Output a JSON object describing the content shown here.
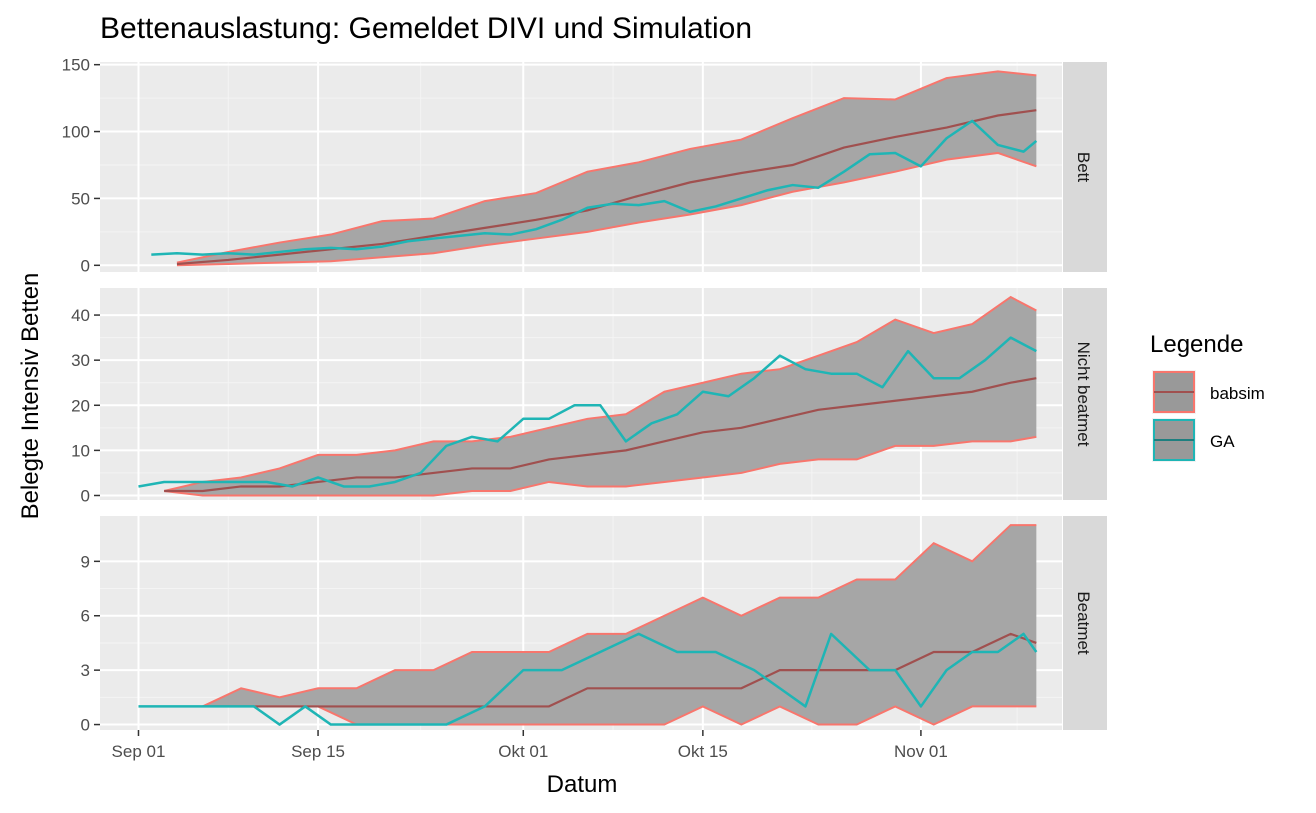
{
  "chart_data": {
    "type": "line",
    "title": "Bettenauslastung: Gemeldet DIVI und Simulation",
    "xlabel": "Datum",
    "ylabel": "Belegte Intensiv Betten",
    "x_range": [
      "2020-08-29",
      "2020-11-12"
    ],
    "x_ticks": [
      {
        "date": "2020-09-01",
        "label": "Sep 01"
      },
      {
        "date": "2020-09-15",
        "label": "Sep 15"
      },
      {
        "date": "2020-10-01",
        "label": "Okt 01"
      },
      {
        "date": "2020-10-15",
        "label": "Okt 15"
      },
      {
        "date": "2020-11-01",
        "label": "Nov 01"
      }
    ],
    "grid": true,
    "legend": {
      "title": "Legende",
      "placement": "right",
      "entries": [
        {
          "name": "babsim",
          "color": "#F8766D",
          "fill": "#999999",
          "line": "#A0504F"
        },
        {
          "name": "GA",
          "color": "#1FB5B5",
          "fill": "#999999",
          "line": "#1E7F7F"
        }
      ]
    },
    "colors": {
      "babsim_ribbon": "#F8766D",
      "babsim_median": "#A0504F",
      "ga": "#1FB5B5",
      "ribbon_fill": "#A6A6A6"
    },
    "facets": [
      {
        "strip": "Bett",
        "ylim": [
          -5,
          152
        ],
        "y_ticks": [
          0,
          50,
          100,
          150
        ],
        "babsim": {
          "x": [
            "2020-09-04",
            "2020-09-08",
            "2020-09-12",
            "2020-09-16",
            "2020-09-20",
            "2020-09-24",
            "2020-09-28",
            "2020-10-02",
            "2020-10-06",
            "2020-10-10",
            "2020-10-14",
            "2020-10-18",
            "2020-10-22",
            "2020-10-26",
            "2020-10-30",
            "2020-11-03",
            "2020-11-07",
            "2020-11-10"
          ],
          "lower": [
            0,
            1,
            2,
            3,
            6,
            9,
            15,
            20,
            25,
            32,
            38,
            45,
            55,
            62,
            70,
            79,
            84,
            74
          ],
          "median": [
            1,
            4,
            8,
            12,
            16,
            22,
            28,
            34,
            41,
            52,
            62,
            69,
            75,
            88,
            96,
            103,
            112,
            116
          ],
          "upper": [
            2,
            10,
            17,
            23,
            33,
            35,
            48,
            54,
            70,
            77,
            87,
            94,
            110,
            125,
            124,
            140,
            145,
            142
          ]
        },
        "ga": {
          "x": [
            "2020-09-02",
            "2020-09-04",
            "2020-09-06",
            "2020-09-08",
            "2020-09-10",
            "2020-09-12",
            "2020-09-14",
            "2020-09-16",
            "2020-09-18",
            "2020-09-20",
            "2020-09-22",
            "2020-09-24",
            "2020-09-26",
            "2020-09-28",
            "2020-09-30",
            "2020-10-02",
            "2020-10-04",
            "2020-10-06",
            "2020-10-08",
            "2020-10-10",
            "2020-10-12",
            "2020-10-14",
            "2020-10-16",
            "2020-10-18",
            "2020-10-20",
            "2020-10-22",
            "2020-10-24",
            "2020-10-26",
            "2020-10-28",
            "2020-10-30",
            "2020-11-01",
            "2020-11-03",
            "2020-11-05",
            "2020-11-07",
            "2020-11-09",
            "2020-11-10"
          ],
          "values": [
            8,
            9,
            8,
            9,
            8,
            10,
            12,
            13,
            12,
            14,
            18,
            20,
            22,
            24,
            23,
            27,
            34,
            43,
            46,
            45,
            48,
            40,
            44,
            50,
            56,
            60,
            58,
            70,
            83,
            84,
            74,
            95,
            108,
            90,
            85,
            93
          ]
        }
      },
      {
        "strip": "Nicht beatmet",
        "ylim": [
          -1,
          46
        ],
        "y_ticks": [
          0,
          10,
          20,
          30,
          40
        ],
        "babsim": {
          "x": [
            "2020-09-03",
            "2020-09-06",
            "2020-09-09",
            "2020-09-12",
            "2020-09-15",
            "2020-09-18",
            "2020-09-21",
            "2020-09-24",
            "2020-09-27",
            "2020-09-30",
            "2020-10-03",
            "2020-10-06",
            "2020-10-09",
            "2020-10-12",
            "2020-10-15",
            "2020-10-18",
            "2020-10-21",
            "2020-10-24",
            "2020-10-27",
            "2020-10-30",
            "2020-11-02",
            "2020-11-05",
            "2020-11-08",
            "2020-11-10"
          ],
          "lower": [
            1,
            0,
            0,
            0,
            0,
            0,
            0,
            0,
            1,
            1,
            3,
            2,
            2,
            3,
            4,
            5,
            7,
            8,
            8,
            11,
            11,
            12,
            12,
            13
          ],
          "median": [
            1,
            1,
            2,
            2,
            3,
            4,
            4,
            5,
            6,
            6,
            8,
            9,
            10,
            12,
            14,
            15,
            17,
            19,
            20,
            21,
            22,
            23,
            25,
            26
          ],
          "upper": [
            1,
            3,
            4,
            6,
            9,
            9,
            10,
            12,
            12,
            13,
            15,
            17,
            18,
            23,
            25,
            27,
            28,
            31,
            34,
            39,
            36,
            38,
            44,
            41
          ]
        },
        "ga": {
          "x": [
            "2020-09-01",
            "2020-09-03",
            "2020-09-05",
            "2020-09-07",
            "2020-09-09",
            "2020-09-11",
            "2020-09-13",
            "2020-09-15",
            "2020-09-17",
            "2020-09-19",
            "2020-09-21",
            "2020-09-23",
            "2020-09-25",
            "2020-09-27",
            "2020-09-29",
            "2020-10-01",
            "2020-10-03",
            "2020-10-05",
            "2020-10-07",
            "2020-10-09",
            "2020-10-11",
            "2020-10-13",
            "2020-10-15",
            "2020-10-17",
            "2020-10-19",
            "2020-10-21",
            "2020-10-23",
            "2020-10-25",
            "2020-10-27",
            "2020-10-29",
            "2020-10-31",
            "2020-11-02",
            "2020-11-04",
            "2020-11-06",
            "2020-11-08",
            "2020-11-10"
          ],
          "values": [
            2,
            3,
            3,
            3,
            3,
            3,
            2,
            4,
            2,
            2,
            3,
            5,
            11,
            13,
            12,
            17,
            17,
            20,
            20,
            12,
            16,
            18,
            23,
            22,
            26,
            31,
            28,
            27,
            27,
            24,
            32,
            26,
            26,
            30,
            35,
            32
          ]
        }
      },
      {
        "strip": "Beatmet",
        "ylim": [
          -0.3,
          11.5
        ],
        "y_ticks": [
          0,
          3,
          6,
          9
        ],
        "babsim": {
          "x": [
            "2020-09-06",
            "2020-09-09",
            "2020-09-12",
            "2020-09-15",
            "2020-09-18",
            "2020-09-21",
            "2020-09-24",
            "2020-09-27",
            "2020-09-30",
            "2020-10-03",
            "2020-10-06",
            "2020-10-09",
            "2020-10-12",
            "2020-10-15",
            "2020-10-18",
            "2020-10-21",
            "2020-10-24",
            "2020-10-27",
            "2020-10-30",
            "2020-11-02",
            "2020-11-05",
            "2020-11-08",
            "2020-11-10"
          ],
          "lower": [
            1,
            1,
            1,
            1,
            0,
            0,
            0,
            0,
            0,
            0,
            0,
            0,
            0,
            1,
            0,
            1,
            0,
            0,
            1,
            0,
            1,
            1,
            1
          ],
          "median": [
            1,
            1,
            1,
            1,
            1,
            1,
            1,
            1,
            1,
            1,
            2,
            2,
            2,
            2,
            2,
            3,
            3,
            3,
            3,
            4,
            4,
            5,
            4.5
          ],
          "upper": [
            1,
            2,
            1.5,
            2,
            2,
            3,
            3,
            4,
            4,
            4,
            5,
            5,
            6,
            7,
            6,
            7,
            7,
            8,
            8,
            10,
            9,
            11,
            11
          ]
        },
        "ga": {
          "x": [
            "2020-09-01",
            "2020-09-04",
            "2020-09-07",
            "2020-09-10",
            "2020-09-12",
            "2020-09-14",
            "2020-09-16",
            "2020-09-19",
            "2020-09-22",
            "2020-09-25",
            "2020-09-28",
            "2020-10-01",
            "2020-10-04",
            "2020-10-07",
            "2020-10-10",
            "2020-10-13",
            "2020-10-16",
            "2020-10-19",
            "2020-10-21",
            "2020-10-23",
            "2020-10-25",
            "2020-10-28",
            "2020-10-30",
            "2020-11-01",
            "2020-11-03",
            "2020-11-05",
            "2020-11-07",
            "2020-11-09",
            "2020-11-10"
          ],
          "values": [
            1,
            1,
            1,
            1,
            0,
            1,
            0,
            0,
            0,
            0,
            1,
            3,
            3,
            4,
            5,
            4,
            4,
            3,
            2,
            1,
            5,
            3,
            3,
            1,
            3,
            4,
            4,
            5,
            4
          ]
        }
      }
    ]
  }
}
